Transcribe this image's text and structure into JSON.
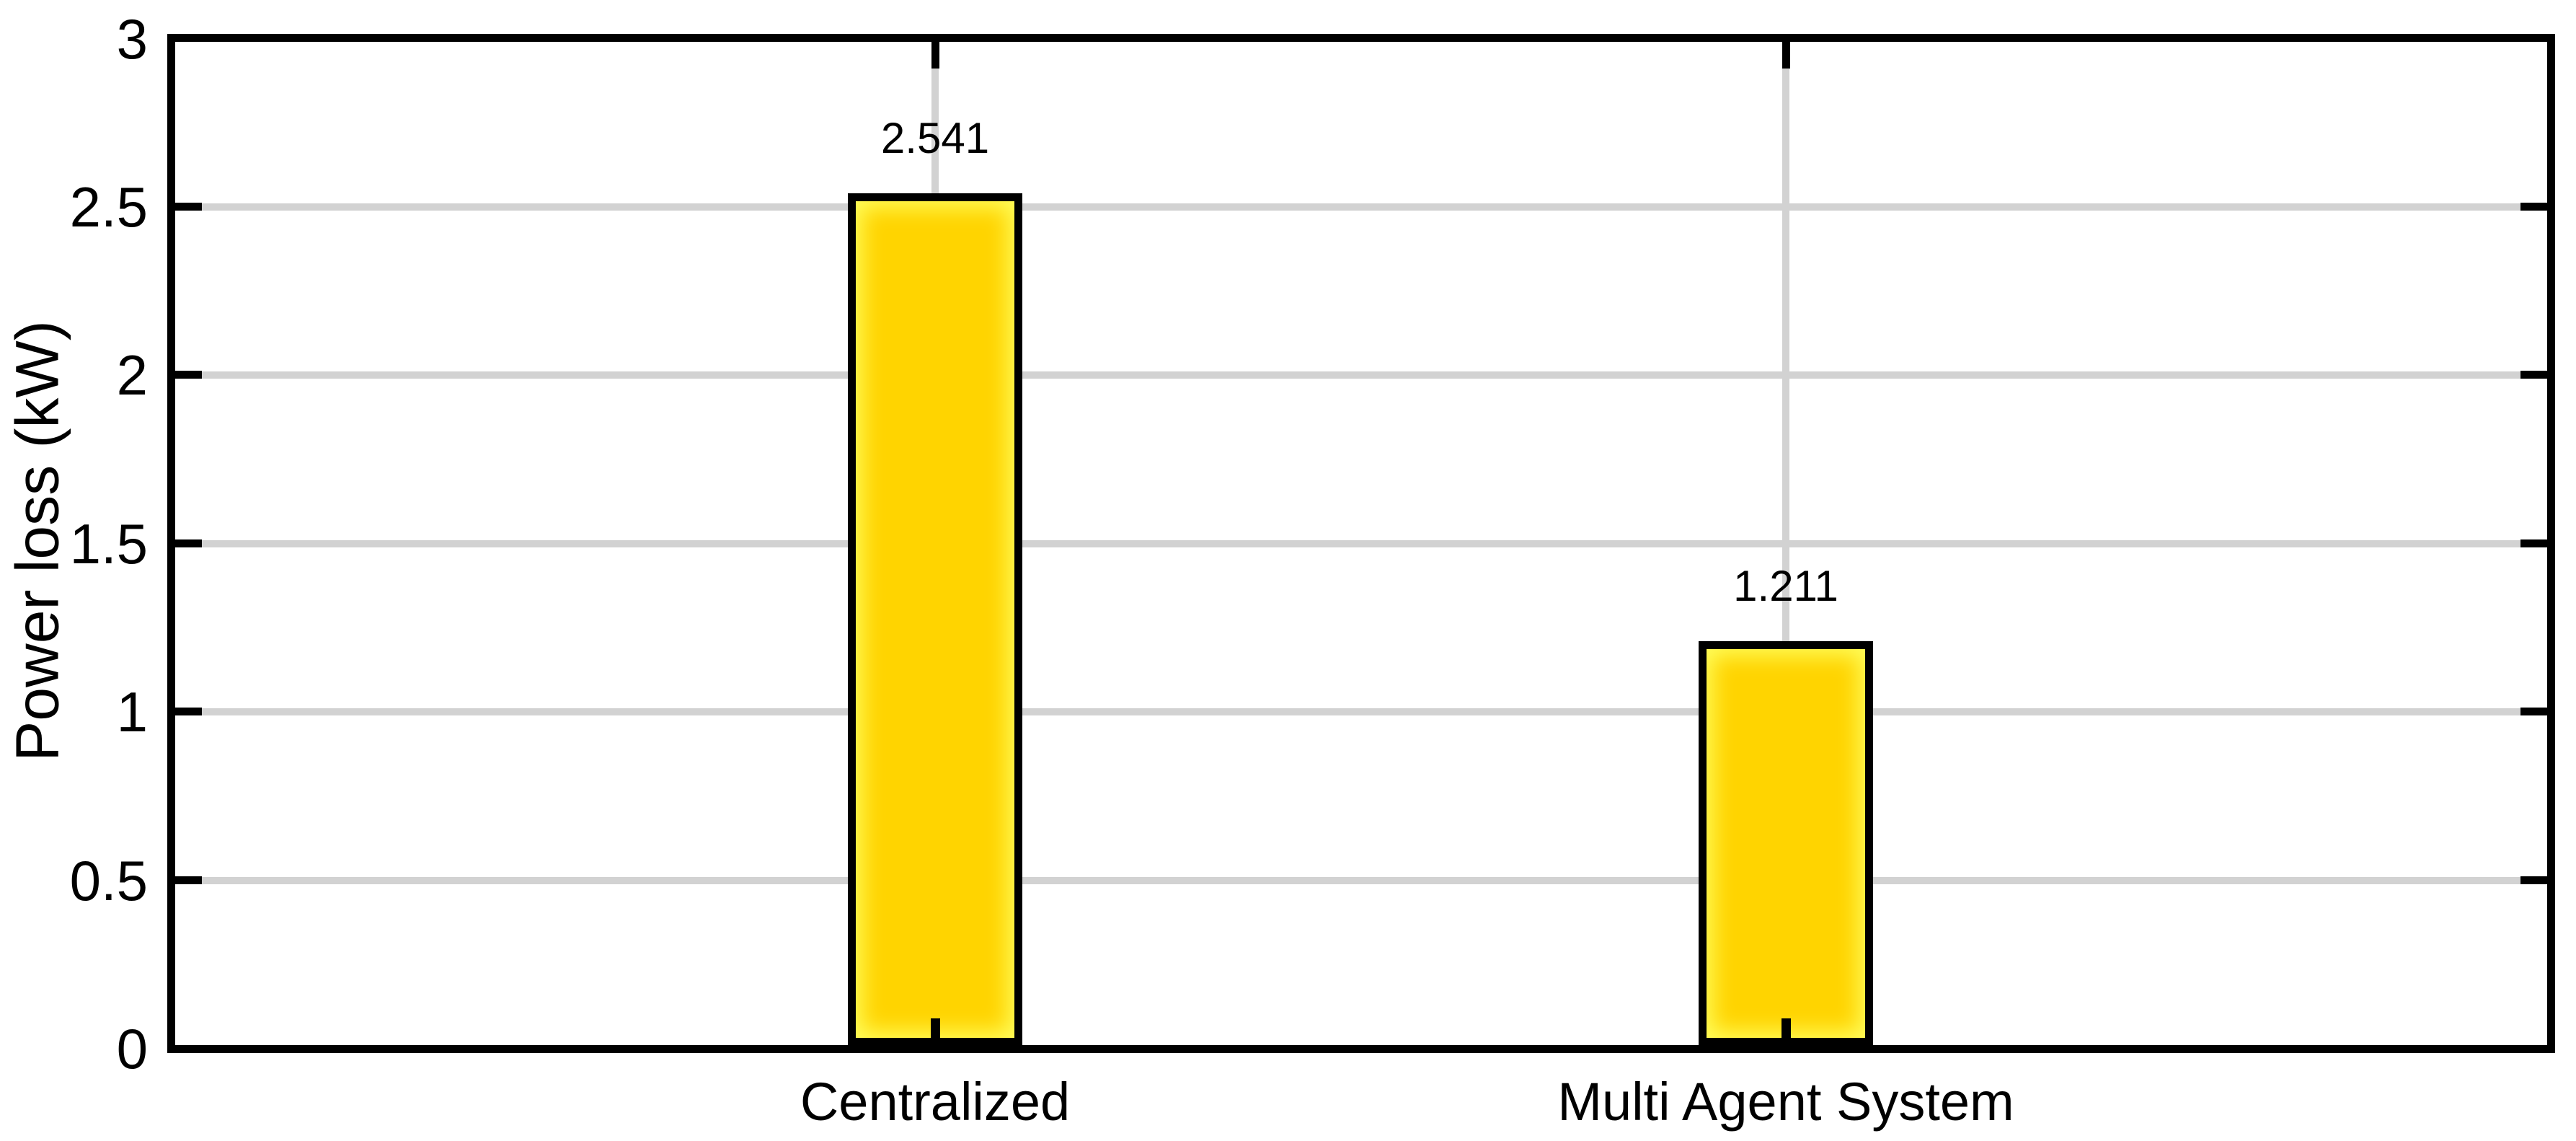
{
  "chart_data": {
    "type": "bar",
    "title": "",
    "xlabel": "",
    "ylabel": "Power loss (kW)",
    "categories": [
      "Centralized",
      "Multi Agent System"
    ],
    "values": [
      2.541,
      1.211
    ],
    "bar_value_labels": [
      "2.541",
      "1.211"
    ],
    "ylim": [
      0,
      3
    ],
    "yticks": [
      0,
      0.5,
      1,
      1.5,
      2,
      2.5,
      3
    ],
    "ytick_labels": [
      "0",
      "0.5",
      "1",
      "1.5",
      "2",
      "2.5",
      "3"
    ],
    "grid": "both x and y gridlines on, solid light gray",
    "legend": "none",
    "tick_direction": "in",
    "box": "on",
    "colors": {
      "bar_fill": "#ffd400",
      "bar_inner_glow": "#ffff5f",
      "bar_border": "#000000",
      "axis": "#000000",
      "grid": "#d2d2d2",
      "text": "#000000",
      "background": "#ffffff"
    }
  }
}
